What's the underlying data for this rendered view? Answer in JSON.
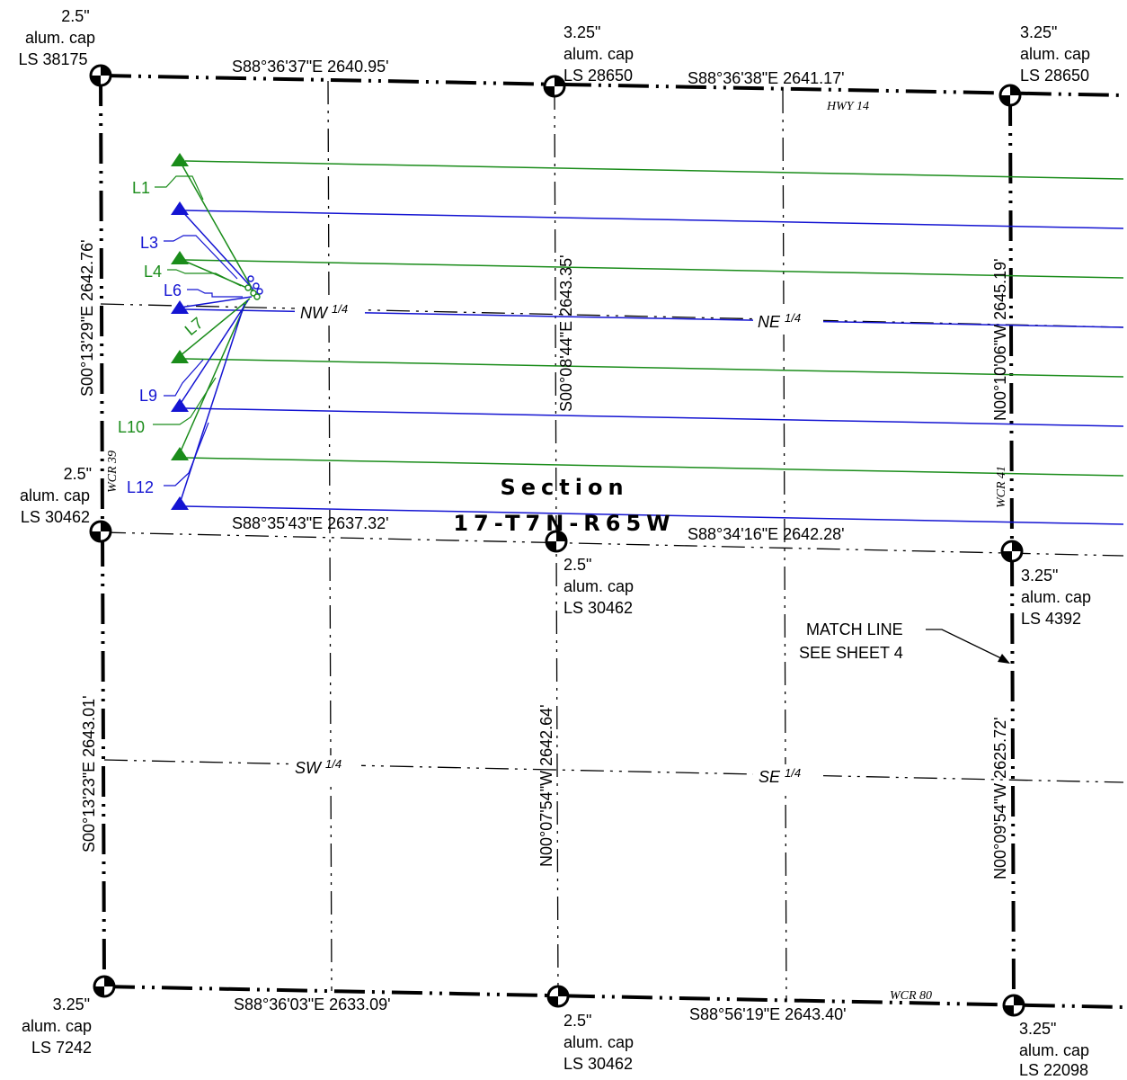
{
  "monuments": {
    "nw": [
      "2.5\"",
      "alum. cap",
      "LS 38175"
    ],
    "n_qtr": [
      "3.25\"",
      "alum. cap",
      "LS 28650"
    ],
    "ne": [
      "3.25\"",
      "alum. cap",
      "LS 28650"
    ],
    "w_qtr": [
      "2.5\"",
      "alum. cap",
      "LS 30462"
    ],
    "center": [
      "2.5\"",
      "alum. cap",
      "LS 30462"
    ],
    "e_qtr": [
      "3.25\"",
      "alum. cap",
      "LS 4392"
    ],
    "sw": [
      "3.25\"",
      "alum. cap",
      "LS 7242"
    ],
    "s_qtr": [
      "2.5\"",
      "alum. cap",
      "LS 30462"
    ],
    "se": [
      "3.25\"",
      "alum. cap",
      "LS 22098"
    ]
  },
  "bearings": {
    "north_w": "S88°36'37\"E  2640.95'",
    "north_e": "S88°36'38\"E  2641.17'",
    "mid_w": "S88°35'43\"E  2637.32'",
    "mid_e": "S88°34'16\"E  2642.28'",
    "south_w": "S88°36'03\"E  2633.09'",
    "south_e": "S88°56'19\"E  2643.40'",
    "west_n": "S00°13'29\"E  2642.76'",
    "west_s": "S00°13'23\"E  2643.01'",
    "center_n": "S00°08'44\"E  2643.35'",
    "center_s": "N00°07'54\"W  2642.64'",
    "east_n": "N00°10'06\"W  2645.19'",
    "east_s": "N00°09'54\"W  2625.72'"
  },
  "roads": {
    "hwy14": "HWY 14",
    "wcr39": "WCR 39",
    "wcr41": "WCR 41",
    "wcr80": "WCR 80"
  },
  "quarters": {
    "nw": "NW",
    "ne": "NE",
    "sw": "SW",
    "se": "SE",
    "fraction": "1/4"
  },
  "section": {
    "line1": "Section",
    "line2": "17-T7N-R65W"
  },
  "match_line": {
    "line1": "MATCH LINE",
    "line2": "SEE SHEET 4"
  },
  "line_labels": [
    "L1",
    "L3",
    "L4",
    "L6",
    "L7",
    "L9",
    "L10",
    "L12"
  ],
  "colors": {
    "green": "#1a8c1a",
    "blue": "#1414d2"
  }
}
